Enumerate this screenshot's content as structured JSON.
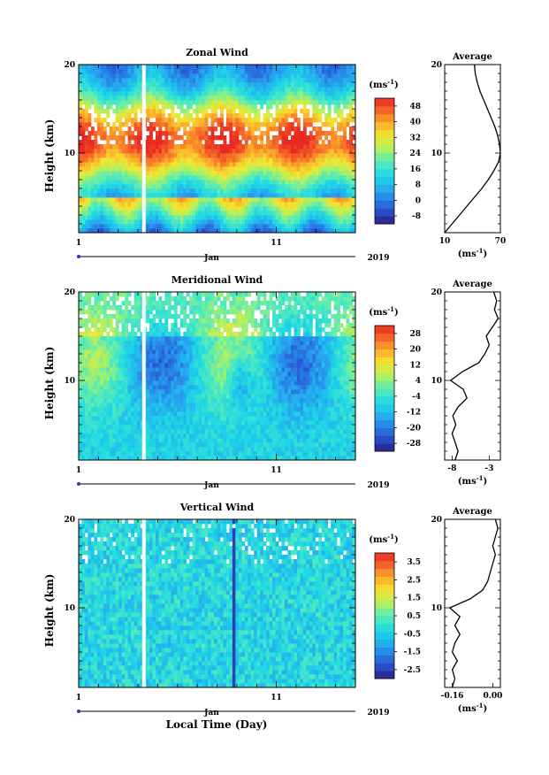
{
  "figure": {
    "xlabel": "Local Time (Day)",
    "month_label": "Jan",
    "year_label": "2019",
    "ylabel": "Height (km)",
    "unit_label": "(ms",
    "unit_sup": "-1",
    "unit_close": ")",
    "avg_title": "Average"
  },
  "chart_data": [
    {
      "type": "heatmap",
      "title": "Zonal Wind",
      "x": {
        "min_day": 1,
        "max_day": 15,
        "tick_labels": [
          "1",
          "11"
        ]
      },
      "y": {
        "ylabel": "Height (km)",
        "ylim": [
          1,
          20
        ],
        "tick_labels": [
          "10",
          "20"
        ]
      },
      "colorbar": {
        "ticks": [
          "-8",
          "0",
          "8",
          "16",
          "24",
          "32",
          "40",
          "48"
        ],
        "range": [
          -12,
          52
        ]
      },
      "data_gap_day": 4.3,
      "average_profile": {
        "title": "Average",
        "xlim": [
          10,
          70
        ],
        "tick_labels": [
          "10",
          "70"
        ],
        "height_km": [
          1,
          2,
          3,
          4,
          5,
          6,
          7,
          8,
          9,
          10,
          11,
          12,
          13,
          14,
          15,
          16,
          17,
          18,
          19,
          20
        ],
        "value": [
          10,
          18,
          26,
          34,
          42,
          50,
          57,
          63,
          68,
          70,
          69,
          67,
          64,
          60,
          56,
          52,
          48,
          45,
          43,
          42
        ]
      }
    },
    {
      "type": "heatmap",
      "title": "Meridional Wind",
      "x": {
        "min_day": 1,
        "max_day": 15,
        "tick_labels": [
          "1",
          "11"
        ]
      },
      "y": {
        "ylabel": "Height (km)",
        "ylim": [
          1,
          20
        ],
        "tick_labels": [
          "10",
          "20"
        ]
      },
      "colorbar": {
        "ticks": [
          "-28",
          "-20",
          "-12",
          "-4",
          "4",
          "12",
          "20",
          "28"
        ],
        "range": [
          -32,
          32
        ]
      },
      "data_gap_day": 4.3,
      "average_profile": {
        "title": "Average",
        "xlim": [
          -9,
          -1.5
        ],
        "tick_labels": [
          "-8",
          "-3"
        ],
        "height_km": [
          1,
          2,
          3,
          4,
          5,
          6,
          7,
          8,
          9,
          10,
          11,
          12,
          13,
          14,
          15,
          16,
          17,
          18,
          19,
          20
        ],
        "value": [
          -7.6,
          -7.2,
          -7.6,
          -8.0,
          -7.5,
          -7.9,
          -7.2,
          -6.0,
          -6.5,
          -8.2,
          -6.6,
          -4.4,
          -3.6,
          -3.0,
          -3.4,
          -2.6,
          -1.8,
          -2.3,
          -2.0,
          -2.4
        ]
      }
    },
    {
      "type": "heatmap",
      "title": "Vertical Wind",
      "x": {
        "min_day": 1,
        "max_day": 15,
        "tick_labels": [
          "1",
          "11"
        ]
      },
      "y": {
        "ylabel": "Height (km)",
        "ylim": [
          1,
          20
        ],
        "tick_labels": [
          "10",
          "20"
        ]
      },
      "colorbar": {
        "ticks": [
          "-2.5",
          "-1.5",
          "-0.5",
          "0.5",
          "1.5",
          "2.5",
          "3.5"
        ],
        "range": [
          -3,
          4
        ]
      },
      "data_gap_day": 4.3,
      "average_profile": {
        "title": "Average",
        "xlim": [
          -0.19,
          0.03
        ],
        "tick_labels": [
          "-0.16",
          "0.00"
        ],
        "height_km": [
          1,
          2,
          3,
          4,
          5,
          6,
          7,
          8,
          9,
          10,
          11,
          12,
          13,
          14,
          15,
          16,
          17,
          18,
          19,
          20
        ],
        "value": [
          -0.16,
          -0.15,
          -0.16,
          -0.14,
          -0.16,
          -0.15,
          -0.13,
          -0.15,
          -0.13,
          -0.17,
          -0.09,
          -0.04,
          -0.02,
          -0.01,
          0.0,
          0.01,
          0.0,
          0.01,
          0.02,
          0.01
        ]
      }
    }
  ]
}
